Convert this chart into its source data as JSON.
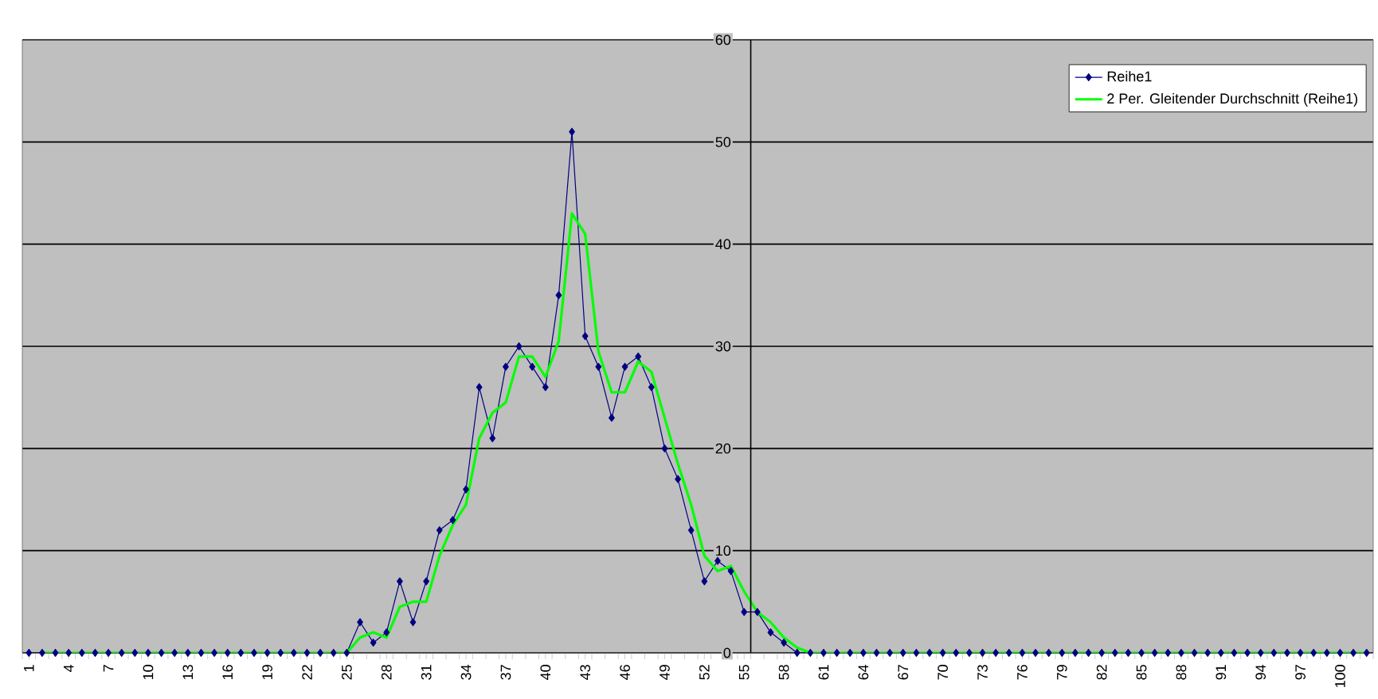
{
  "chart_data": {
    "type": "line",
    "categories": [
      "1",
      null,
      null,
      "4",
      null,
      null,
      "7",
      null,
      null,
      "10",
      null,
      null,
      "13",
      null,
      null,
      "16",
      null,
      null,
      "19",
      null,
      null,
      "22",
      null,
      null,
      "25",
      null,
      null,
      "28",
      null,
      null,
      "31",
      null,
      null,
      "34",
      null,
      null,
      "37",
      null,
      null,
      "40",
      null,
      null,
      "43",
      null,
      null,
      "46",
      null,
      null,
      "49",
      null,
      null,
      "52",
      null,
      null,
      "55",
      null,
      null,
      "58",
      null,
      null,
      "61",
      null,
      null,
      "64",
      null,
      null,
      "67",
      null,
      null,
      "70",
      null,
      null,
      "73",
      null,
      null,
      "76",
      null,
      null,
      "79",
      null,
      null,
      "82",
      null,
      null,
      "85",
      null,
      null,
      "88",
      null,
      null,
      "91",
      null,
      null,
      "94",
      null,
      null,
      "97",
      null,
      null,
      "100",
      null,
      null
    ],
    "series": [
      {
        "name": "Reihe1",
        "color": "#000080",
        "marker": "diamond",
        "values": [
          0,
          0,
          0,
          0,
          0,
          0,
          0,
          0,
          0,
          0,
          0,
          0,
          0,
          0,
          0,
          0,
          0,
          0,
          0,
          0,
          0,
          0,
          0,
          0,
          0,
          3,
          1,
          2,
          7,
          3,
          7,
          12,
          13,
          16,
          26,
          21,
          28,
          30,
          28,
          26,
          35,
          51,
          31,
          28,
          23,
          28,
          29,
          26,
          20,
          17,
          12,
          7,
          9,
          8,
          4,
          4,
          2,
          1,
          0,
          0,
          0,
          0,
          0,
          0,
          0,
          0,
          0,
          0,
          0,
          0,
          0,
          0,
          0,
          0,
          0,
          0,
          0,
          0,
          0,
          0,
          0,
          0,
          0,
          0,
          0,
          0,
          0,
          0,
          0,
          0,
          0,
          0,
          0,
          0,
          0,
          0,
          0,
          0,
          0,
          0,
          0,
          0
        ]
      },
      {
        "name": "2 Per. Gleitender Durchschnitt (Reihe1)",
        "color": "#00ff00",
        "marker": "none",
        "values": [
          null,
          0,
          0,
          0,
          0,
          0,
          0,
          0,
          0,
          0,
          0,
          0,
          0,
          0,
          0,
          0,
          0,
          0,
          0,
          0,
          0,
          0,
          0,
          0,
          0,
          1.5,
          2,
          1.5,
          4.5,
          5,
          5,
          9.5,
          12.5,
          14.5,
          21,
          23.5,
          24.5,
          29,
          29,
          27,
          30.5,
          43,
          41,
          29.5,
          25.5,
          25.5,
          28.5,
          27.5,
          23,
          18.5,
          14.5,
          9.5,
          8,
          8.5,
          6,
          4,
          3,
          1.5,
          0.5,
          0,
          0,
          0,
          0,
          0,
          0,
          0,
          0,
          0,
          0,
          0,
          0,
          0,
          0,
          0,
          0,
          0,
          0,
          0,
          0,
          0,
          0,
          0,
          0,
          0,
          0,
          0,
          0,
          0,
          0,
          0,
          0,
          0,
          0,
          0,
          0,
          0,
          0,
          0,
          0,
          0,
          0,
          0
        ]
      }
    ],
    "ylim": [
      0,
      60
    ],
    "yticks": [
      0,
      10,
      20,
      30,
      40,
      50,
      60
    ],
    "grid": "y",
    "legend": "top right"
  }
}
